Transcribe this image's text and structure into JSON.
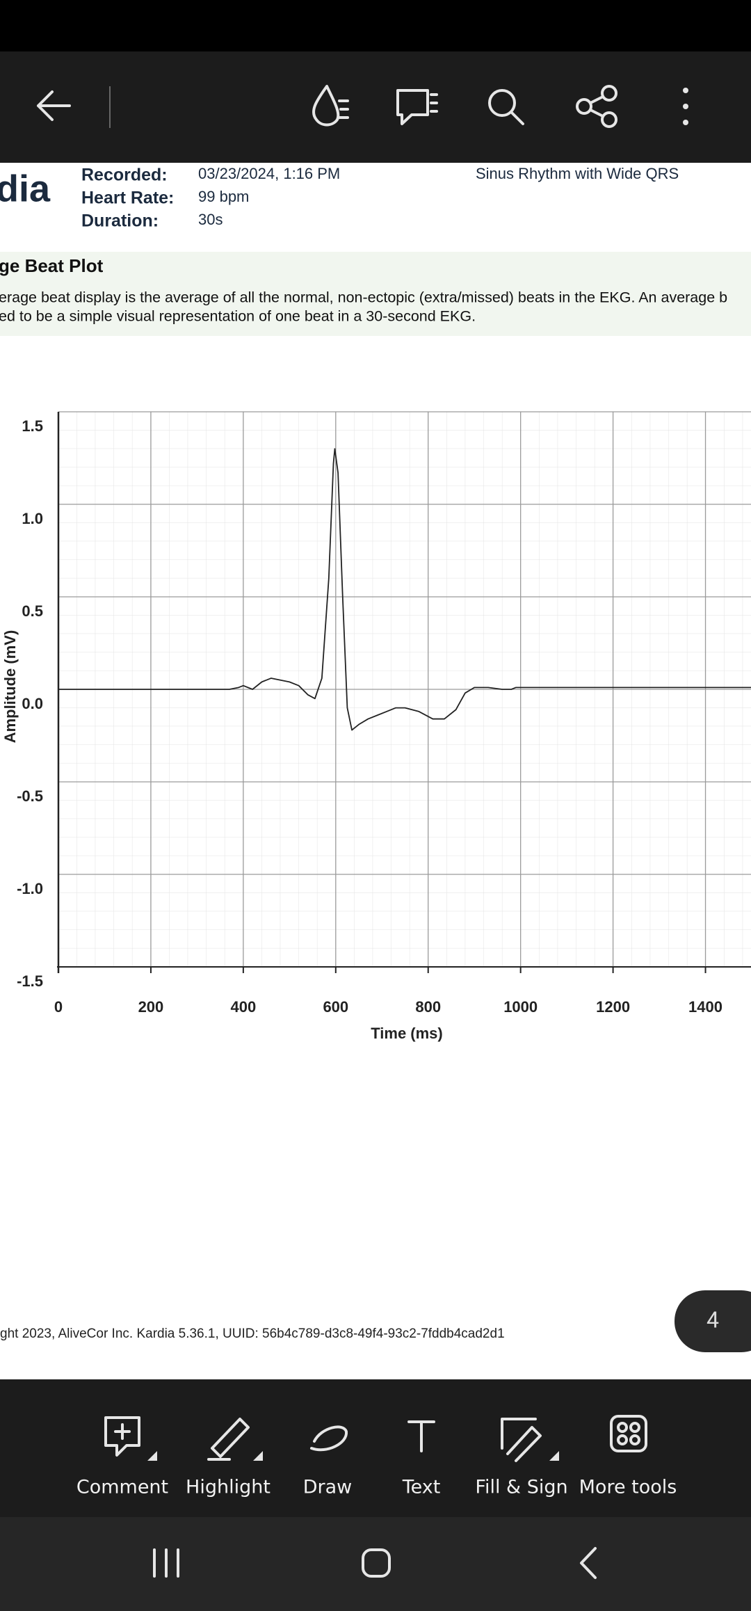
{
  "report": {
    "title_fragment": "dia",
    "fields": [
      {
        "label": "Recorded:",
        "value": "03/23/2024, 1:16 PM"
      },
      {
        "label": "Heart Rate:",
        "value": "99 bpm"
      },
      {
        "label": "Duration:",
        "value": "30s"
      }
    ],
    "rhythm": "Sinus Rhythm with Wide QRS",
    "section": {
      "title": "ge Beat Plot",
      "text": [
        "erage beat display is the average of all the normal, non-ectopic (extra/missed) beats in the EKG. An average b",
        "ed to be a simple visual representation of one beat in a 30-second EKG."
      ]
    }
  },
  "chart_data": {
    "type": "line",
    "xlabel": "Time (ms)",
    "ylabel": "Amplitude (mV)",
    "x": [
      0,
      370,
      390,
      400,
      420,
      440,
      460,
      500,
      520,
      540,
      555,
      570,
      585,
      595,
      598,
      605,
      615,
      625,
      635,
      650,
      670,
      690,
      710,
      730,
      750,
      780,
      810,
      835,
      860,
      880,
      900,
      930,
      960,
      980,
      990,
      1500
    ],
    "series": [
      {
        "name": "Average beat",
        "color": "#222222",
        "values": [
          0,
          0,
          0.01,
          0.02,
          0,
          0.04,
          0.06,
          0.04,
          0.02,
          -0.03,
          -0.05,
          0.06,
          0.6,
          1.22,
          1.3,
          1.17,
          0.5,
          -0.1,
          -0.22,
          -0.19,
          -0.16,
          -0.14,
          -0.12,
          -0.1,
          -0.1,
          -0.12,
          -0.16,
          -0.16,
          -0.11,
          -0.02,
          0.01,
          0.01,
          0,
          0,
          0.01,
          0.01
        ]
      }
    ],
    "xlim": [
      0,
      1500
    ],
    "xticks": [
      0,
      200,
      400,
      600,
      800,
      1000,
      1200,
      1400
    ],
    "ylim": [
      -1.5,
      1.5
    ],
    "yticks": [
      -1.5,
      {
        "value": -1,
        "label": "-1.0"
      },
      -0.5,
      {
        "value": 0,
        "label": "0.0"
      },
      0.5,
      {
        "value": 1,
        "label": "1.0"
      },
      1.5
    ],
    "grid": true
  },
  "footer": "ght 2023, AliveCor Inc. Kardia 5.36.1, UUID: 56b4c789-d3c8-49f4-93c2-7fddb4cad2d1",
  "page_number": "4",
  "tools": [
    "Comment",
    "Highlight",
    "Draw",
    "Text",
    "Fill & Sign",
    "More tools"
  ]
}
